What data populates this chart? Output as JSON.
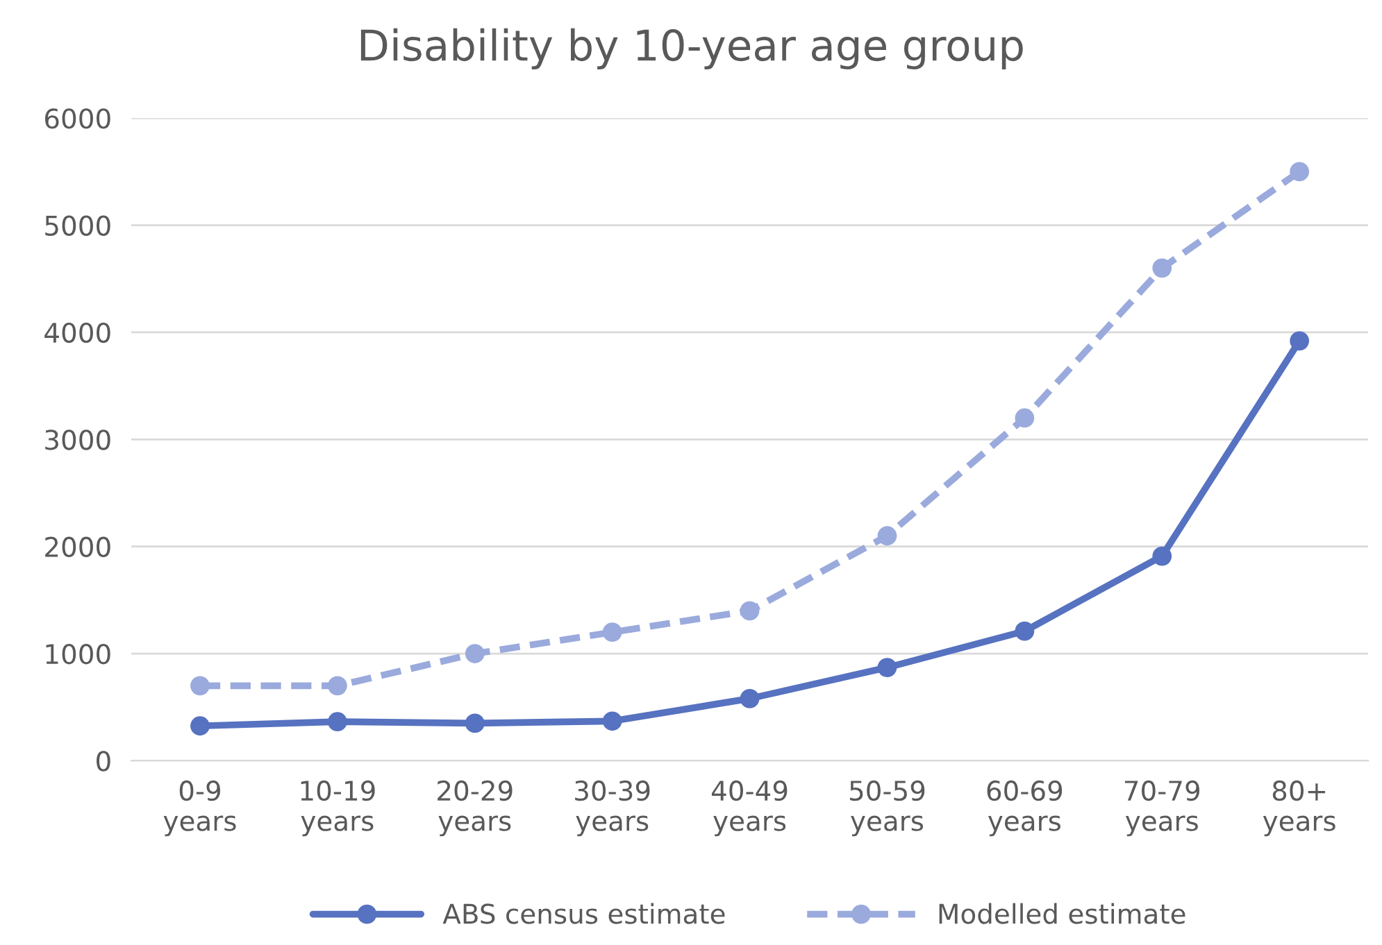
{
  "chart_data": {
    "type": "line",
    "title": "Disability by 10-year age group",
    "categories": [
      "0-9 years",
      "10-19 years",
      "20-29 years",
      "30-39 years",
      "40-49 years",
      "50-59 years",
      "60-69 years",
      "70-79 years",
      "80+ years"
    ],
    "series": [
      {
        "name": "ABS census estimate",
        "color": "#5672c0",
        "line_style": "solid",
        "values": [
          325,
          364,
          350,
          370,
          580,
          870,
          1210,
          1910,
          3920
        ]
      },
      {
        "name": "Modelled estimate",
        "color": "#9aaadd",
        "line_style": "dashed",
        "values": [
          700,
          700,
          1000,
          1200,
          1400,
          2100,
          3200,
          4600,
          5500
        ]
      }
    ],
    "ylim": [
      0,
      6000
    ],
    "yticks": [
      0,
      1000,
      2000,
      3000,
      4000,
      5000,
      6000
    ],
    "grid": "y",
    "legend": "bottom",
    "marker": "circle"
  }
}
